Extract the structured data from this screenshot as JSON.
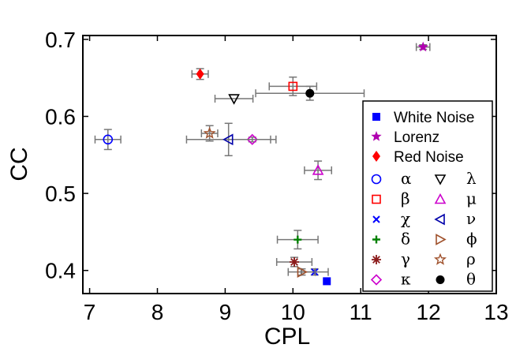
{
  "chart_data": {
    "type": "scatter",
    "xlabel": "CPL",
    "ylabel": "CC",
    "xlim": [
      6.9,
      13.0
    ],
    "ylim": [
      0.37,
      0.705
    ],
    "xticks": [
      7,
      8,
      9,
      10,
      11,
      12,
      13
    ],
    "yticks": [
      0.4,
      0.5,
      0.6,
      0.7
    ],
    "ytick_labels": [
      "0.4",
      "0.5",
      "0.6",
      "0.7"
    ],
    "grid": false,
    "legend_position": "right",
    "points": [
      {
        "name": "White Noise",
        "label": "White Noise",
        "marker": "square",
        "color": "#0000ff",
        "x": 10.5,
        "y": 0.386,
        "xerr": 0,
        "yerr": 0
      },
      {
        "name": "Lorenz",
        "label": "Lorenz",
        "marker": "star5",
        "color": "#b000b0",
        "x": 11.92,
        "y": 0.69,
        "xerr": 0.1,
        "yerr": 0.003
      },
      {
        "name": "Red Noise",
        "label": "Red Noise",
        "marker": "diamond",
        "color": "#ff0000",
        "x": 8.63,
        "y": 0.655,
        "xerr": 0.12,
        "yerr": 0.007
      },
      {
        "name": "alpha",
        "label": "α",
        "marker": "circle",
        "color": "#0000ff",
        "x": 7.27,
        "y": 0.57,
        "xerr": 0.19,
        "yerr": 0.013
      },
      {
        "name": "beta",
        "label": "β",
        "marker": "square-open",
        "color": "#ff0000",
        "x": 10.0,
        "y": 0.639,
        "xerr": 0.35,
        "yerr": 0.012
      },
      {
        "name": "chi",
        "label": "χ",
        "marker": "x",
        "color": "#0000ff",
        "x": 10.32,
        "y": 0.398,
        "xerr": 0.2,
        "yerr": 0.004
      },
      {
        "name": "delta",
        "label": "δ",
        "marker": "plus",
        "color": "#008000",
        "x": 10.07,
        "y": 0.44,
        "xerr": 0.3,
        "yerr": 0.012
      },
      {
        "name": "gamma",
        "label": "γ",
        "marker": "asterisk",
        "color": "#8b1a1a",
        "x": 10.02,
        "y": 0.411,
        "xerr": 0.26,
        "yerr": 0.006
      },
      {
        "name": "kappa",
        "label": "κ",
        "marker": "diamond-open",
        "color": "#cc00cc",
        "x": 9.4,
        "y": 0.57,
        "xerr": 0.35,
        "yerr": 0.003
      },
      {
        "name": "lambda",
        "label": "λ",
        "marker": "triangle-down",
        "color": "#000000",
        "x": 9.13,
        "y": 0.623,
        "xerr": 0.28,
        "yerr": 0.0
      },
      {
        "name": "mu",
        "label": "μ",
        "marker": "triangle-up",
        "color": "#cc00cc",
        "x": 10.37,
        "y": 0.53,
        "xerr": 0.2,
        "yerr": 0.012
      },
      {
        "name": "nu",
        "label": "ν",
        "marker": "triangle-left",
        "color": "#0000aa",
        "x": 9.05,
        "y": 0.57,
        "xerr": 0.62,
        "yerr": 0.021
      },
      {
        "name": "phi",
        "label": "ϕ",
        "marker": "triangle-right",
        "color": "#a0522d",
        "x": 10.13,
        "y": 0.398,
        "xerr": 0.2,
        "yerr": 0.004
      },
      {
        "name": "rho",
        "label": "ρ",
        "marker": "star5-open",
        "color": "#a0522d",
        "x": 8.77,
        "y": 0.578,
        "xerr": 0.12,
        "yerr": 0.01
      },
      {
        "name": "theta",
        "label": "θ",
        "marker": "dot",
        "color": "#000000",
        "x": 10.25,
        "y": 0.63,
        "xerr": 0.8,
        "yerr": 0.009
      }
    ],
    "legend": {
      "wide_entries": [
        "White Noise",
        "Lorenz",
        "Red Noise"
      ],
      "column1": [
        "alpha",
        "beta",
        "chi",
        "delta",
        "gamma",
        "kappa"
      ],
      "column2": [
        "lambda",
        "mu",
        "nu",
        "phi",
        "rho",
        "theta"
      ]
    }
  }
}
